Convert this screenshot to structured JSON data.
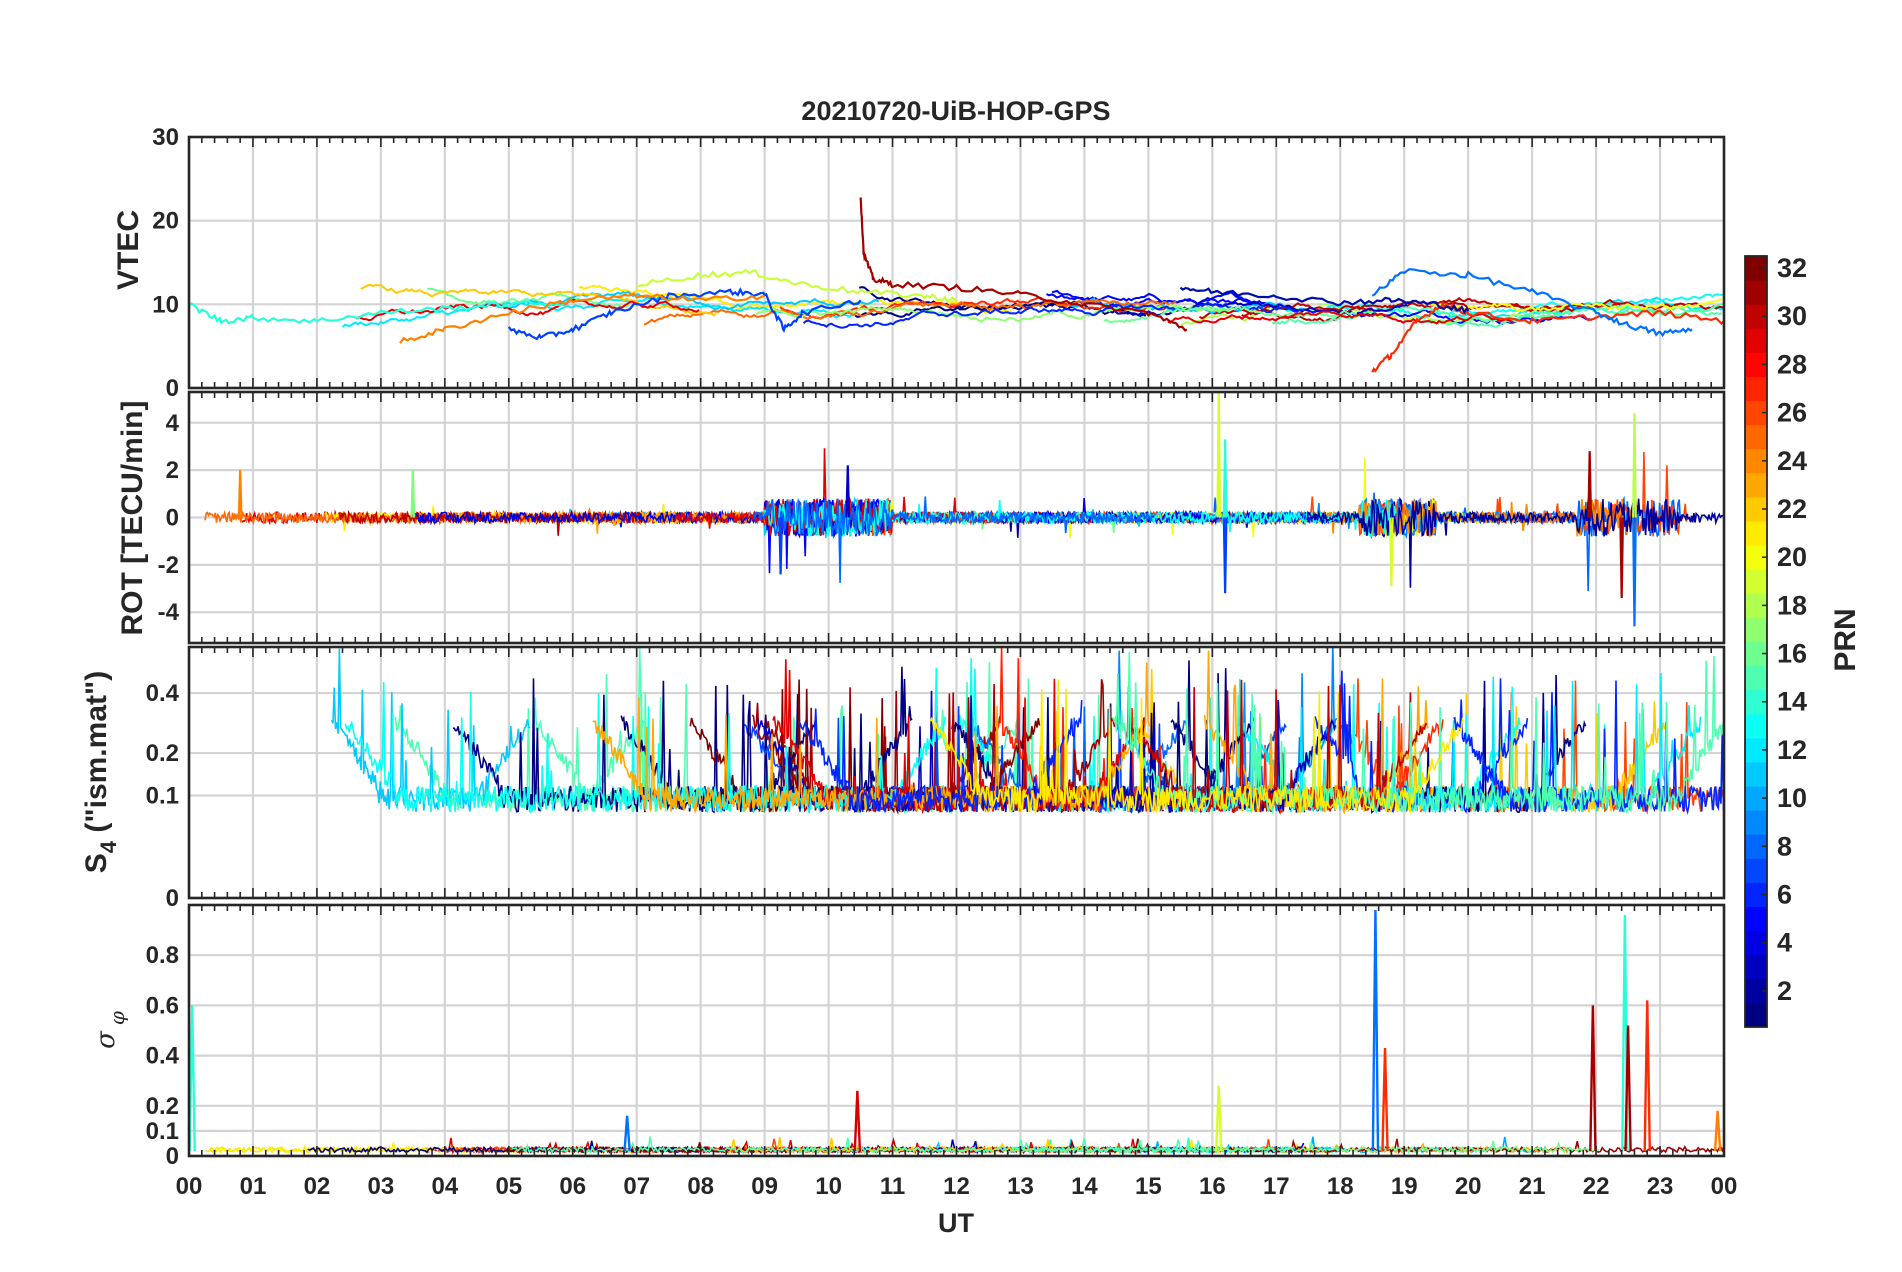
{
  "chart_data": [
    {
      "type": "line",
      "title": "20210720-UiB-HOP-GPS",
      "ylabel": "VTEC",
      "ylim": [
        0,
        30
      ],
      "yticks": [
        "0",
        "10",
        "20",
        "30"
      ],
      "xlabel": "",
      "xlim": [
        0,
        24
      ],
      "grid": true,
      "x_unit": "hours UT",
      "data_description": "dense time series, one trace per GPS PRN; baseline 7-12 TECU",
      "series": [
        {
          "name": "PRN 31",
          "color": "#a50000",
          "points": [
            [
              10.5,
              23
            ],
            [
              10.55,
              16
            ],
            [
              10.7,
              13
            ],
            [
              11,
              12.4
            ],
            [
              12,
              12
            ],
            [
              13,
              11.2
            ],
            [
              14,
              10
            ],
            [
              15,
              9
            ],
            [
              15.6,
              7
            ]
          ]
        },
        {
          "name": "PRN 27",
          "color": "#ff2b00",
          "points": [
            [
              18.5,
              2
            ],
            [
              18.8,
              4
            ],
            [
              19.2,
              8
            ],
            [
              19.6,
              10
            ],
            [
              20,
              9
            ],
            [
              21,
              8
            ],
            [
              22,
              8.5
            ],
            [
              23,
              9
            ],
            [
              24,
              8
            ]
          ]
        },
        {
          "name": "PRN 19",
          "color": "#c8ff3b",
          "points": [
            [
              7,
              12.3
            ],
            [
              8,
              13.5
            ],
            [
              8.8,
              13.8
            ],
            [
              9.5,
              12.5
            ],
            [
              10.5,
              11.5
            ],
            [
              11.5,
              11
            ],
            [
              12,
              10.5
            ]
          ]
        },
        {
          "name": "PRN 6",
          "color": "#0040ff",
          "points": [
            [
              5,
              7
            ],
            [
              5.5,
              6
            ],
            [
              6,
              7
            ],
            [
              6.6,
              9
            ],
            [
              7.5,
              11
            ],
            [
              8.5,
              11.5
            ],
            [
              9,
              11.2
            ],
            [
              9.3,
              7
            ],
            [
              9.6,
              9
            ],
            [
              10.5,
              10.5
            ]
          ]
        },
        {
          "name": "PRN 2",
          "color": "#000ea8",
          "points": [
            [
              15.5,
              12
            ],
            [
              16,
              11.5
            ],
            [
              17,
              11
            ],
            [
              18,
              10.2
            ],
            [
              18.8,
              10.5
            ],
            [
              19.5,
              10
            ],
            [
              20,
              9.2
            ]
          ]
        },
        {
          "name": "PRN 13",
          "color": "#28ffd7",
          "points": [
            [
              0,
              10
            ],
            [
              0.5,
              8
            ],
            [
              1,
              8.4
            ],
            [
              2,
              8
            ],
            [
              3,
              9
            ],
            [
              4,
              9.5
            ],
            [
              5,
              10
            ],
            [
              6,
              10.2
            ]
          ]
        },
        {
          "name": "PRN 24",
          "color": "#ff8000",
          "points": [
            [
              3.3,
              5.5
            ],
            [
              4,
              7
            ],
            [
              5,
              9
            ],
            [
              6,
              10.5
            ],
            [
              7,
              11
            ],
            [
              8,
              10.5
            ],
            [
              9,
              11
            ]
          ]
        },
        {
          "name": "PRN 9",
          "color": "#0070ff",
          "points": [
            [
              18.5,
              11
            ],
            [
              19,
              14
            ],
            [
              20,
              13.5
            ],
            [
              21,
              11.5
            ],
            [
              22,
              9
            ],
            [
              22.5,
              7.5
            ],
            [
              23,
              6.5
            ],
            [
              23.5,
              7
            ]
          ]
        }
      ]
    },
    {
      "type": "line",
      "ylabel": "ROT [TECU/min]",
      "ylim": [
        -5.3,
        5.3
      ],
      "yticks": [
        "-4",
        "-2",
        "0",
        "2",
        "4"
      ],
      "xlim": [
        0,
        24
      ],
      "grid": true,
      "data_description": "dense noisy time series near 0 with spikes",
      "spikes": [
        {
          "x": 16.1,
          "y": 5.4,
          "color": "#d6ff25"
        },
        {
          "x": 16.2,
          "y": -3.2,
          "color": "#0040ff"
        },
        {
          "x": 16.2,
          "y": 3.3,
          "color": "#28ffd7"
        },
        {
          "x": 9.25,
          "y": -2.4,
          "color": "#0040ff"
        },
        {
          "x": 10.3,
          "y": 2.2,
          "color": "#0000c8"
        },
        {
          "x": 18.8,
          "y": -2.9,
          "color": "#d6ff25"
        },
        {
          "x": 22.4,
          "y": -3.4,
          "color": "#a50000"
        },
        {
          "x": 22.6,
          "y": 4.4,
          "color": "#b7ff47"
        },
        {
          "x": 22.6,
          "y": -4.6,
          "color": "#0070ff"
        },
        {
          "x": 21.9,
          "y": 2.8,
          "color": "#a50000"
        },
        {
          "x": 0.8,
          "y": 2.0,
          "color": "#ff8000"
        },
        {
          "x": 3.5,
          "y": 2.0,
          "color": "#7aff7a"
        }
      ]
    },
    {
      "type": "line",
      "ylabel": "S_4 (\"ism.mat\")",
      "ylabel_main": "S",
      "ylabel_sub": "4",
      "ylabel_rest": " (\"ism.mat\")",
      "ylim": [
        0,
        0.6
      ],
      "y_scale": "sqrt",
      "yticks": [
        "0",
        "0.1",
        "0.2",
        "0.4"
      ],
      "yticks_values": [
        0,
        0.1,
        0.2,
        0.4
      ],
      "xlim": [
        0,
        24
      ],
      "grid": true,
      "data_description": "dense scintillation index traces, baseline 0.05-0.2, bursts up to 0.6"
    },
    {
      "type": "line",
      "ylabel": "σ_φ",
      "ylabel_main": "σ",
      "ylabel_sub": "φ",
      "ylim": [
        0,
        1
      ],
      "yticks": [
        "0",
        "0.1",
        "0.2",
        "0.4",
        "0.6",
        "0.8"
      ],
      "yticks_values": [
        0,
        0.1,
        0.2,
        0.4,
        0.6,
        0.8
      ],
      "xlabel": "UT",
      "xlim": [
        0,
        24
      ],
      "xticks": [
        "00",
        "01",
        "02",
        "03",
        "04",
        "05",
        "06",
        "07",
        "08",
        "09",
        "10",
        "11",
        "12",
        "13",
        "14",
        "15",
        "16",
        "17",
        "18",
        "19",
        "20",
        "21",
        "22",
        "23",
        "00"
      ],
      "grid": true,
      "data_description": "phase scintillation, near 0.02 baseline with spikes",
      "spikes": [
        {
          "x": 18.55,
          "y": 0.98,
          "color": "#0070ff"
        },
        {
          "x": 18.7,
          "y": 0.43,
          "color": "#ff2b00"
        },
        {
          "x": 21.95,
          "y": 0.6,
          "color": "#a50000"
        },
        {
          "x": 22.45,
          "y": 0.96,
          "color": "#28ffd7"
        },
        {
          "x": 22.5,
          "y": 0.52,
          "color": "#a50000"
        },
        {
          "x": 22.8,
          "y": 0.62,
          "color": "#ff2b00"
        },
        {
          "x": 10.45,
          "y": 0.26,
          "color": "#d50000"
        },
        {
          "x": 16.1,
          "y": 0.28,
          "color": "#d6ff25"
        },
        {
          "x": 6.85,
          "y": 0.16,
          "color": "#0070ff"
        },
        {
          "x": 0.05,
          "y": 0.6,
          "color": "#28ffd7"
        },
        {
          "x": 23.9,
          "y": 0.18,
          "color": "#ff8000"
        }
      ]
    }
  ],
  "colorbar": {
    "label": "PRN",
    "range": [
      1,
      32
    ],
    "colormap": "jet",
    "ticks": [
      "2",
      "4",
      "6",
      "8",
      "10",
      "12",
      "14",
      "16",
      "18",
      "20",
      "22",
      "24",
      "26",
      "28",
      "30",
      "32"
    ],
    "tick_values": [
      2,
      4,
      6,
      8,
      10,
      12,
      14,
      16,
      18,
      20,
      22,
      24,
      26,
      28,
      30,
      32
    ]
  }
}
